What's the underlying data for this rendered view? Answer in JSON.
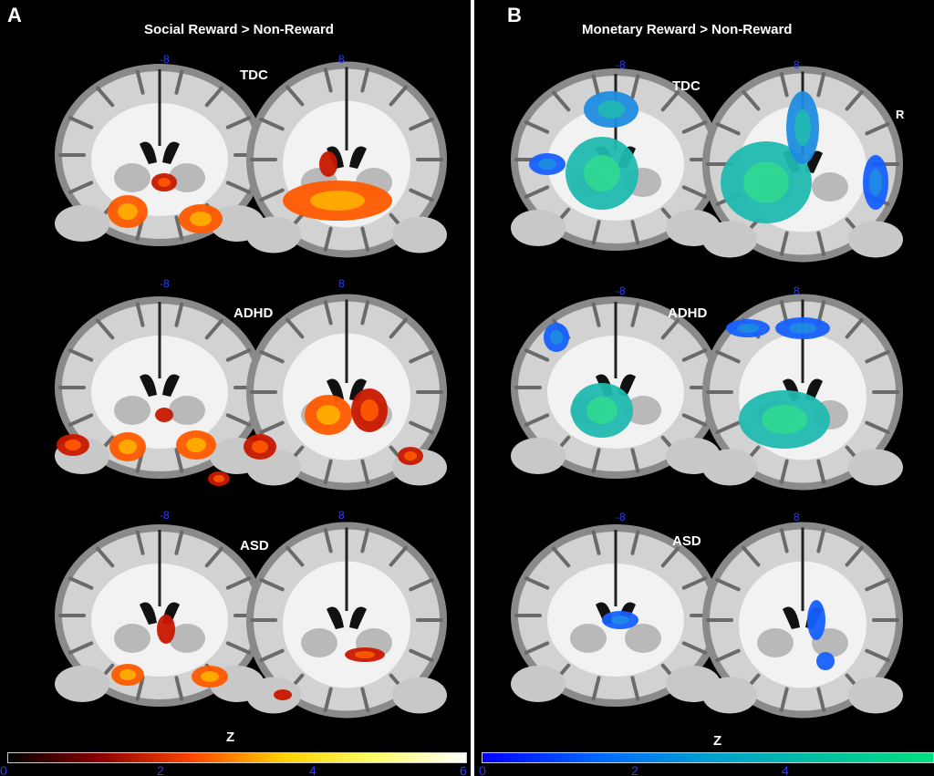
{
  "panels": [
    {
      "letter": "A",
      "title": "Social Reward > Non-Reward",
      "groups": [
        "TDC",
        "ADHD",
        "ASD"
      ],
      "coords": [
        "-8",
        "8"
      ],
      "colorbar": {
        "label": "Z",
        "ticks": [
          "0",
          "2",
          "4",
          "6"
        ],
        "colors": [
          "#000000",
          "#8b0000",
          "#ff4400",
          "#ffd000",
          "#ffff66",
          "#ffffff"
        ]
      }
    },
    {
      "letter": "B",
      "title": "Monetary Reward > Non-Reward",
      "groups": [
        "TDC",
        "ADHD",
        "ASD"
      ],
      "coords": [
        "-8",
        "8"
      ],
      "side_label": "R",
      "colorbar": {
        "label": "Z",
        "ticks": [
          "0",
          "2",
          "4"
        ],
        "colors": [
          "#0000ff",
          "#0066ff",
          "#00a0d0",
          "#00c0a0",
          "#00e080"
        ]
      }
    }
  ],
  "activation_colors": {
    "social": [
      "#c81800",
      "#ff5a00",
      "#ffb000",
      "#ffe070"
    ],
    "monetary": [
      "#1660ff",
      "#1e8ce0",
      "#20b8b0",
      "#30d890"
    ]
  }
}
